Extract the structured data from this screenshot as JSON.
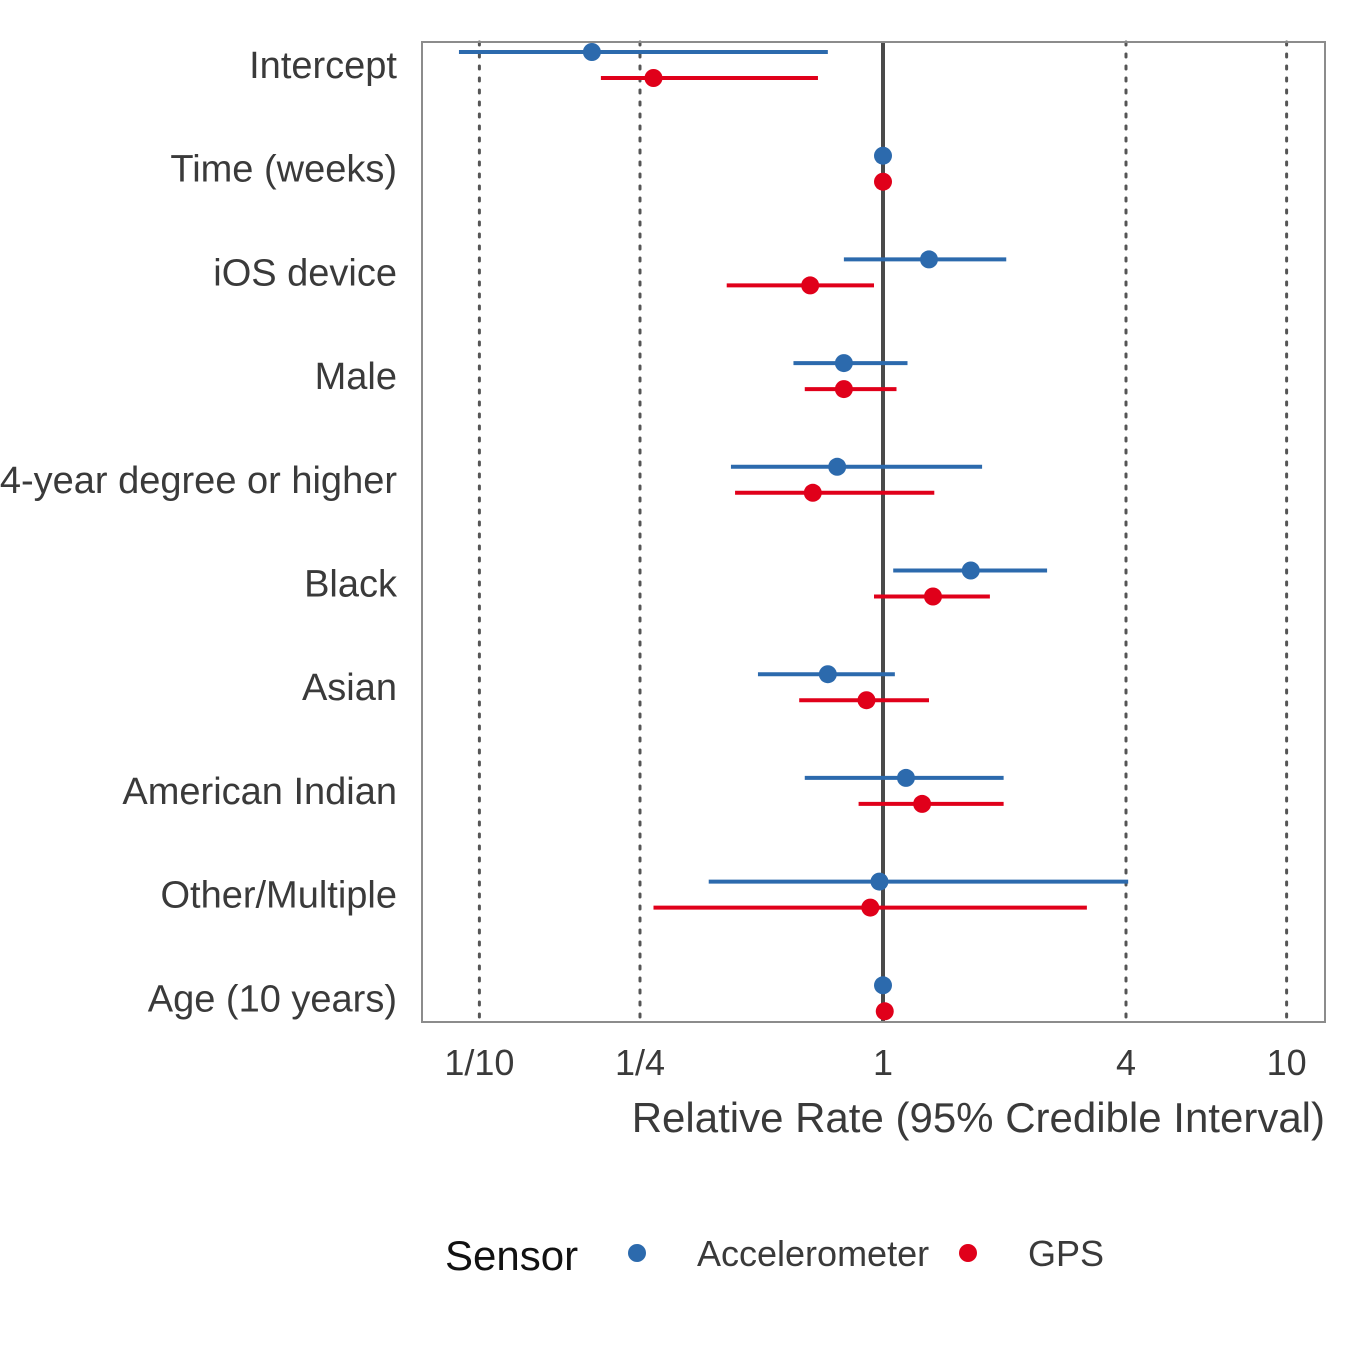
{
  "chart_data": {
    "type": "scatter",
    "xlabel": "Relative Rate (95% Credible Interval)",
    "ylabel": "",
    "x_scale": "log",
    "xlim": [
      0.082,
      12
    ],
    "x_ticks": [
      {
        "value": 0.1,
        "label": "1/10"
      },
      {
        "value": 0.25,
        "label": "1/4"
      },
      {
        "value": 1,
        "label": "1"
      },
      {
        "value": 4,
        "label": "4"
      },
      {
        "value": 10,
        "label": "10"
      }
    ],
    "reference_line": 1,
    "grid": "dotted vertical at ticks",
    "categories": [
      "Intercept",
      "Time (weeks)",
      "iOS device",
      "Male",
      "4-year degree or higher",
      "Black",
      "Asian",
      "American Indian",
      "Other/Multiple",
      "Age (10 years)"
    ],
    "legend": {
      "title": "Sensor",
      "position": "bottom"
    },
    "series": [
      {
        "name": "Accelerometer",
        "color": "#2c6aad",
        "estimate": [
          0.19,
          1.0,
          1.3,
          0.8,
          0.77,
          1.65,
          0.73,
          1.14,
          0.98,
          1.0
        ],
        "lower": [
          0.089,
          1.0,
          0.8,
          0.6,
          0.42,
          1.06,
          0.49,
          0.64,
          0.37,
          1.0
        ],
        "upper": [
          0.73,
          1.0,
          2.02,
          1.15,
          1.76,
          2.55,
          1.07,
          1.99,
          4.05,
          1.0
        ]
      },
      {
        "name": "GPS",
        "color": "#e0001a",
        "estimate": [
          0.27,
          1.0,
          0.66,
          0.8,
          0.67,
          1.33,
          0.91,
          1.25,
          0.93,
          1.01
        ],
        "lower": [
          0.2,
          1.0,
          0.41,
          0.64,
          0.43,
          0.95,
          0.62,
          0.87,
          0.27,
          1.01
        ],
        "upper": [
          0.69,
          1.0,
          0.95,
          1.08,
          1.34,
          1.84,
          1.3,
          1.99,
          3.2,
          1.01
        ]
      }
    ]
  }
}
